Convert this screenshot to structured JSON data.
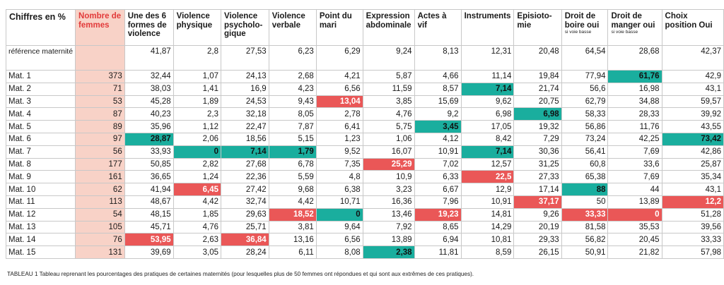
{
  "table": {
    "headers": [
      {
        "label": "Chiffres en %",
        "small": ""
      },
      {
        "label": "Nombre de femmes",
        "small": ""
      },
      {
        "label": "Une des 6 formes de violence",
        "small": ""
      },
      {
        "label": "Violence physique",
        "small": ""
      },
      {
        "label": "Violence psycholo-gique",
        "small": ""
      },
      {
        "label": "Violence verbale",
        "small": ""
      },
      {
        "label": "Point du mari",
        "small": ""
      },
      {
        "label": "Expression abdominale",
        "small": ""
      },
      {
        "label": "Actes à vif",
        "small": ""
      },
      {
        "label": "Instruments",
        "small": ""
      },
      {
        "label": "Episioto-mie",
        "small": ""
      },
      {
        "label": "Droit de boire oui",
        "small": "si voie basse"
      },
      {
        "label": "Droit de manger oui",
        "small": "si voie basse"
      },
      {
        "label": "Choix position Oui",
        "small": ""
      }
    ],
    "reference": {
      "label": "référence maternité",
      "values": [
        "",
        "41,87",
        "2,8",
        "27,53",
        "6,23",
        "6,29",
        "9,24",
        "8,13",
        "12,31",
        "20,48",
        "64,54",
        "28,68",
        "42,37"
      ]
    },
    "rows": [
      {
        "label": "Mat. 1",
        "values": [
          "373",
          "32,44",
          "1,07",
          "24,13",
          "2,68",
          "4,21",
          "5,87",
          "4,66",
          "11,14",
          "19,84",
          "77,94",
          "61,76",
          "42,9"
        ],
        "highlights": {
          "11": "teal"
        }
      },
      {
        "label": "Mat. 2",
        "values": [
          "71",
          "38,03",
          "1,41",
          "16,9",
          "4,23",
          "6,56",
          "11,59",
          "8,57",
          "7,14",
          "21,74",
          "56,6",
          "16,98",
          "43,1"
        ],
        "highlights": {
          "8": "teal"
        }
      },
      {
        "label": "Mat. 3",
        "values": [
          "53",
          "45,28",
          "1,89",
          "24,53",
          "9,43",
          "13,04",
          "3,85",
          "15,69",
          "9,62",
          "20,75",
          "62,79",
          "34,88",
          "59,57"
        ],
        "highlights": {
          "5": "red"
        }
      },
      {
        "label": "Mat. 4",
        "values": [
          "87",
          "40,23",
          "2,3",
          "32,18",
          "8,05",
          "2,78",
          "4,76",
          "9,2",
          "6,98",
          "6,98",
          "58,33",
          "28,33",
          "39,92"
        ],
        "highlights": {
          "9": "teal"
        }
      },
      {
        "label": "Mat. 5",
        "values": [
          "89",
          "35,96",
          "1,12",
          "22,47",
          "7,87",
          "6,41",
          "5,75",
          "3,45",
          "17,05",
          "19,32",
          "56,86",
          "11,76",
          "43,55"
        ],
        "highlights": {
          "7": "teal"
        }
      },
      {
        "label": "Mat. 6",
        "values": [
          "97",
          "28,87",
          "2,06",
          "18,56",
          "5,15",
          "1,23",
          "1,06",
          "4,12",
          "8,42",
          "7,29",
          "73,24",
          "42,25",
          "73,42"
        ],
        "highlights": {
          "1": "teal",
          "12": "teal"
        }
      },
      {
        "label": "Mat. 7",
        "values": [
          "56",
          "33,93",
          "0",
          "7,14",
          "1,79",
          "9,52",
          "16,07",
          "10,91",
          "7,14",
          "30,36",
          "56,41",
          "7,69",
          "42,86"
        ],
        "highlights": {
          "2": "teal",
          "3": "teal",
          "4": "teal",
          "8": "teal"
        }
      },
      {
        "label": "Mat. 8",
        "values": [
          "177",
          "50,85",
          "2,82",
          "27,68",
          "6,78",
          "7,35",
          "25,29",
          "7,02",
          "12,57",
          "31,25",
          "60,8",
          "33,6",
          "25,87"
        ],
        "highlights": {
          "6": "red"
        }
      },
      {
        "label": "Mat. 9",
        "values": [
          "161",
          "36,65",
          "1,24",
          "22,36",
          "5,59",
          "4,8",
          "10,9",
          "6,33",
          "22,5",
          "27,33",
          "65,38",
          "7,69",
          "35,34"
        ],
        "highlights": {
          "8": "red"
        }
      },
      {
        "label": "Mat. 10",
        "values": [
          "62",
          "41,94",
          "6,45",
          "27,42",
          "9,68",
          "6,38",
          "3,23",
          "6,67",
          "12,9",
          "17,14",
          "88",
          "44",
          "43,1"
        ],
        "highlights": {
          "2": "red",
          "10": "teal"
        }
      },
      {
        "label": "Mat. 11",
        "values": [
          "113",
          "48,67",
          "4,42",
          "32,74",
          "4,42",
          "10,71",
          "16,36",
          "7,96",
          "10,91",
          "37,17",
          "50",
          "13,89",
          "12,2"
        ],
        "highlights": {
          "9": "red",
          "12": "red"
        }
      },
      {
        "label": "Mat. 12",
        "values": [
          "54",
          "48,15",
          "1,85",
          "29,63",
          "18,52",
          "0",
          "13,46",
          "19,23",
          "14,81",
          "9,26",
          "33,33",
          "0",
          "51,28"
        ],
        "highlights": {
          "4": "red",
          "5": "teal",
          "7": "red",
          "10": "red",
          "11": "red"
        }
      },
      {
        "label": "Mat. 13",
        "values": [
          "105",
          "45,71",
          "4,76",
          "25,71",
          "3,81",
          "9,64",
          "7,92",
          "8,65",
          "14,29",
          "20,19",
          "81,58",
          "35,53",
          "39,56"
        ],
        "highlights": {}
      },
      {
        "label": "Mat. 14",
        "values": [
          "76",
          "53,95",
          "2,63",
          "36,84",
          "13,16",
          "6,56",
          "13,89",
          "6,94",
          "10,81",
          "29,33",
          "56,82",
          "20,45",
          "33,33"
        ],
        "highlights": {
          "1": "red",
          "3": "red"
        }
      },
      {
        "label": "Mat. 15",
        "values": [
          "131",
          "39,69",
          "3,05",
          "28,24",
          "6,11",
          "8,08",
          "2,38",
          "11,81",
          "8,59",
          "26,15",
          "50,91",
          "21,82",
          "57,98"
        ],
        "highlights": {
          "6": "teal"
        }
      }
    ]
  },
  "caption": "TABLEAU 1 Tableau reprenant les pourcentages des pratiques de certaines maternités (pour lesquelles plus de 50 femmes ont répondues et qui sont aux extrêmes de ces pratiques).",
  "colors": {
    "teal": "#1aae9e",
    "red": "#ea5757",
    "nombre_bg": "#f8d2c7",
    "nombre_header": "#e23a3a"
  }
}
